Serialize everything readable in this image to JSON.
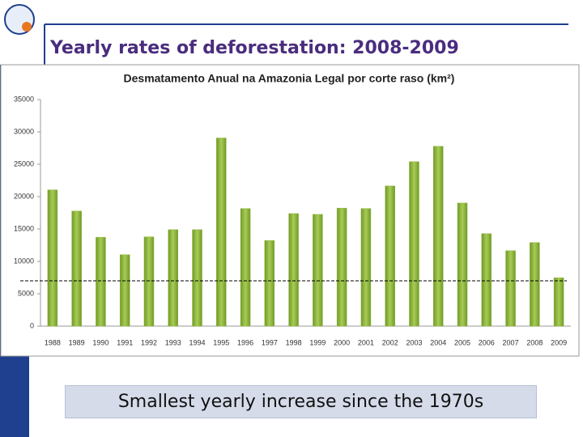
{
  "slide": {
    "title": "Yearly rates of deforestation: 2008-2009",
    "caption": "Smallest yearly increase since the 1970s"
  },
  "chart_data": {
    "type": "bar",
    "title": "Desmatamento Anual na Amazonia Legal por corte raso (km²)",
    "categories": [
      "1988",
      "1989",
      "1990",
      "1991",
      "1992",
      "1993",
      "1994",
      "1995",
      "1996",
      "1997",
      "1998",
      "1999",
      "2000",
      "2001",
      "2002",
      "2003",
      "2004",
      "2005",
      "2006",
      "2007",
      "2008",
      "2009"
    ],
    "values": [
      21050,
      17770,
      13730,
      11030,
      13786,
      14896,
      14896,
      29059,
      18161,
      13227,
      17383,
      17259,
      18226,
      18165,
      21651,
      25396,
      27772,
      19014,
      14286,
      11651,
      12911,
      7464
    ],
    "color": "#8fb43c",
    "ylim": [
      0,
      35000
    ],
    "yticks": [
      0,
      5000,
      10000,
      15000,
      20000,
      25000,
      30000,
      35000
    ],
    "reference_line": 7000,
    "grid": false
  }
}
